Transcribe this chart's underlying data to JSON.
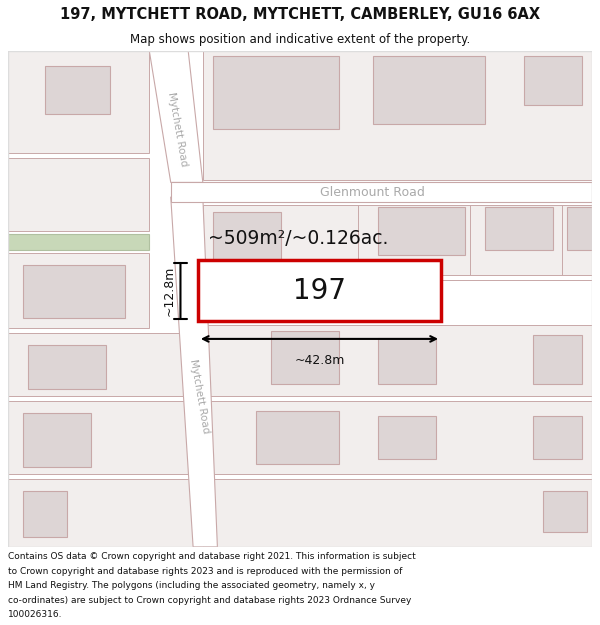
{
  "title": "197, MYTCHETT ROAD, MYTCHETT, CAMBERLEY, GU16 6AX",
  "subtitle": "Map shows position and indicative extent of the property.",
  "footer_line1": "Contains OS data © Crown copyright and database right 2021. This information is subject",
  "footer_line2": "to Crown copyright and database rights 2023 and is reproduced with the permission of",
  "footer_line3": "HM Land Registry. The polygons (including the associated geometry, namely x, y",
  "footer_line4": "co-ordinates) are subject to Crown copyright and database rights 2023 Ordnance Survey",
  "footer_line5": "100026316.",
  "bg_color": "#ffffff",
  "map_bg": "#f9f7f7",
  "plot_bg": "#f2eeed",
  "bld_color": "#ddd5d5",
  "bld_edge": "#c8a8a8",
  "road_edge": "#c8a8a8",
  "road_color": "#ffffff",
  "green_color": "#c8d8b8",
  "green_edge": "#b0c0a0",
  "highlight_color": "#cc0000",
  "highlight_fill": "#ffffff",
  "arrow_color": "#000000",
  "road_label_color": "#aaaaaa",
  "area_text": "~509m²/~0.126ac.",
  "parcel_label": "197",
  "dim_width": "~42.8m",
  "dim_height": "~12.8m",
  "road_name_upper": "Mytchett Road",
  "road_name_lower": "Mytchett Road",
  "glenmount": "Glenmount Road",
  "title_fontsize": 10.5,
  "subtitle_fontsize": 8.5
}
